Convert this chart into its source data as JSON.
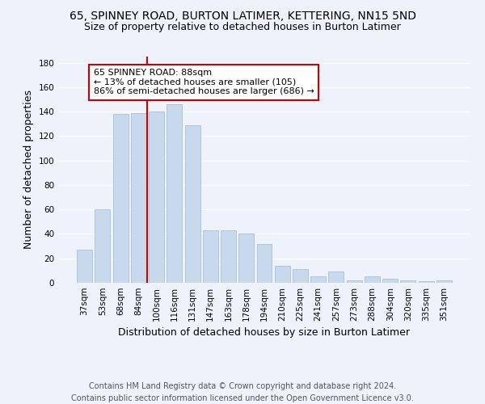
{
  "title_line1": "65, SPINNEY ROAD, BURTON LATIMER, KETTERING, NN15 5ND",
  "title_line2": "Size of property relative to detached houses in Burton Latimer",
  "xlabel": "Distribution of detached houses by size in Burton Latimer",
  "ylabel": "Number of detached properties",
  "categories": [
    "37sqm",
    "53sqm",
    "68sqm",
    "84sqm",
    "100sqm",
    "116sqm",
    "131sqm",
    "147sqm",
    "163sqm",
    "178sqm",
    "194sqm",
    "210sqm",
    "225sqm",
    "241sqm",
    "257sqm",
    "273sqm",
    "288sqm",
    "304sqm",
    "320sqm",
    "335sqm",
    "351sqm"
  ],
  "values": [
    27,
    60,
    138,
    139,
    140,
    146,
    129,
    43,
    43,
    40,
    32,
    14,
    11,
    5,
    9,
    2,
    5,
    3,
    2,
    1,
    2
  ],
  "bar_color": "#c8d9ee",
  "bar_edge_color": "#a8c0dc",
  "vline_color": "#cc0000",
  "annotation_text": "65 SPINNEY ROAD: 88sqm\n← 13% of detached houses are smaller (105)\n86% of semi-detached houses are larger (686) →",
  "annotation_box_color": "#ffffff",
  "annotation_box_edge": "#cc0000",
  "ylim": [
    0,
    185
  ],
  "yticks": [
    0,
    20,
    40,
    60,
    80,
    100,
    120,
    140,
    160,
    180
  ],
  "footer_line1": "Contains HM Land Registry data © Crown copyright and database right 2024.",
  "footer_line2": "Contains public sector information licensed under the Open Government Licence v3.0.",
  "bg_color": "#edf2fb",
  "grid_color": "#ffffff",
  "title_fontsize": 10,
  "subtitle_fontsize": 9,
  "axis_label_fontsize": 9,
  "tick_fontsize": 7.5,
  "annotation_fontsize": 8,
  "footer_fontsize": 7
}
